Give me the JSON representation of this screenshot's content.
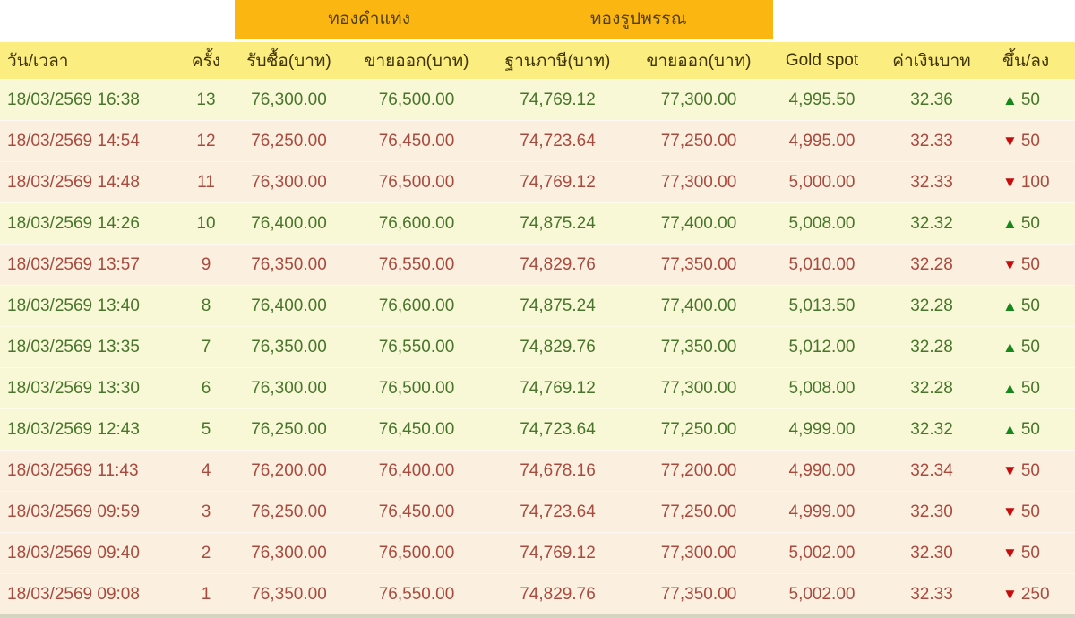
{
  "banner": {
    "gold_bar_label": "ทองคำแท่ง",
    "gold_ornament_label": "ทองรูปพรรณ"
  },
  "colors": {
    "banner_bg": "#fcb612",
    "header_bg": "#fbed7f",
    "row_up_bg": "#f9f8d6",
    "row_down_bg": "#fbf0e0",
    "up_text": "#48752b",
    "down_text": "#a84a3e",
    "up_arrow": "#17871b",
    "down_arrow": "#c60c0c"
  },
  "icons": {
    "up": "▲",
    "down": "▼"
  },
  "table": {
    "columns": [
      "วัน/เวลา",
      "ครั้ง",
      "รับซื้อ(บาท)",
      "ขายออก(บาท)",
      "ฐานภาษี(บาท)",
      "ขายออก(บาท)",
      "Gold spot",
      "ค่าเงินบาท",
      "ขึ้น/ลง"
    ],
    "rows": [
      {
        "datetime": "18/03/2569 16:38",
        "round": "13",
        "buy": "76,300.00",
        "sell": "76,500.00",
        "tax_base": "74,769.12",
        "sell_ornament": "77,300.00",
        "gold_spot": "4,995.50",
        "thb": "32.36",
        "change": "50",
        "direction": "up"
      },
      {
        "datetime": "18/03/2569 14:54",
        "round": "12",
        "buy": "76,250.00",
        "sell": "76,450.00",
        "tax_base": "74,723.64",
        "sell_ornament": "77,250.00",
        "gold_spot": "4,995.00",
        "thb": "32.33",
        "change": "50",
        "direction": "down"
      },
      {
        "datetime": "18/03/2569 14:48",
        "round": "11",
        "buy": "76,300.00",
        "sell": "76,500.00",
        "tax_base": "74,769.12",
        "sell_ornament": "77,300.00",
        "gold_spot": "5,000.00",
        "thb": "32.33",
        "change": "100",
        "direction": "down"
      },
      {
        "datetime": "18/03/2569 14:26",
        "round": "10",
        "buy": "76,400.00",
        "sell": "76,600.00",
        "tax_base": "74,875.24",
        "sell_ornament": "77,400.00",
        "gold_spot": "5,008.00",
        "thb": "32.32",
        "change": "50",
        "direction": "up"
      },
      {
        "datetime": "18/03/2569 13:57",
        "round": "9",
        "buy": "76,350.00",
        "sell": "76,550.00",
        "tax_base": "74,829.76",
        "sell_ornament": "77,350.00",
        "gold_spot": "5,010.00",
        "thb": "32.28",
        "change": "50",
        "direction": "down"
      },
      {
        "datetime": "18/03/2569 13:40",
        "round": "8",
        "buy": "76,400.00",
        "sell": "76,600.00",
        "tax_base": "74,875.24",
        "sell_ornament": "77,400.00",
        "gold_spot": "5,013.50",
        "thb": "32.28",
        "change": "50",
        "direction": "up"
      },
      {
        "datetime": "18/03/2569 13:35",
        "round": "7",
        "buy": "76,350.00",
        "sell": "76,550.00",
        "tax_base": "74,829.76",
        "sell_ornament": "77,350.00",
        "gold_spot": "5,012.00",
        "thb": "32.28",
        "change": "50",
        "direction": "up"
      },
      {
        "datetime": "18/03/2569 13:30",
        "round": "6",
        "buy": "76,300.00",
        "sell": "76,500.00",
        "tax_base": "74,769.12",
        "sell_ornament": "77,300.00",
        "gold_spot": "5,008.00",
        "thb": "32.28",
        "change": "50",
        "direction": "up"
      },
      {
        "datetime": "18/03/2569 12:43",
        "round": "5",
        "buy": "76,250.00",
        "sell": "76,450.00",
        "tax_base": "74,723.64",
        "sell_ornament": "77,250.00",
        "gold_spot": "4,999.00",
        "thb": "32.32",
        "change": "50",
        "direction": "up"
      },
      {
        "datetime": "18/03/2569 11:43",
        "round": "4",
        "buy": "76,200.00",
        "sell": "76,400.00",
        "tax_base": "74,678.16",
        "sell_ornament": "77,200.00",
        "gold_spot": "4,990.00",
        "thb": "32.34",
        "change": "50",
        "direction": "down"
      },
      {
        "datetime": "18/03/2569 09:59",
        "round": "3",
        "buy": "76,250.00",
        "sell": "76,450.00",
        "tax_base": "74,723.64",
        "sell_ornament": "77,250.00",
        "gold_spot": "4,999.00",
        "thb": "32.30",
        "change": "50",
        "direction": "down"
      },
      {
        "datetime": "18/03/2569 09:40",
        "round": "2",
        "buy": "76,300.00",
        "sell": "76,500.00",
        "tax_base": "74,769.12",
        "sell_ornament": "77,300.00",
        "gold_spot": "5,002.00",
        "thb": "32.30",
        "change": "50",
        "direction": "down"
      },
      {
        "datetime": "18/03/2569 09:08",
        "round": "1",
        "buy": "76,350.00",
        "sell": "76,550.00",
        "tax_base": "74,829.76",
        "sell_ornament": "77,350.00",
        "gold_spot": "5,002.00",
        "thb": "32.33",
        "change": "250",
        "direction": "down"
      }
    ]
  }
}
